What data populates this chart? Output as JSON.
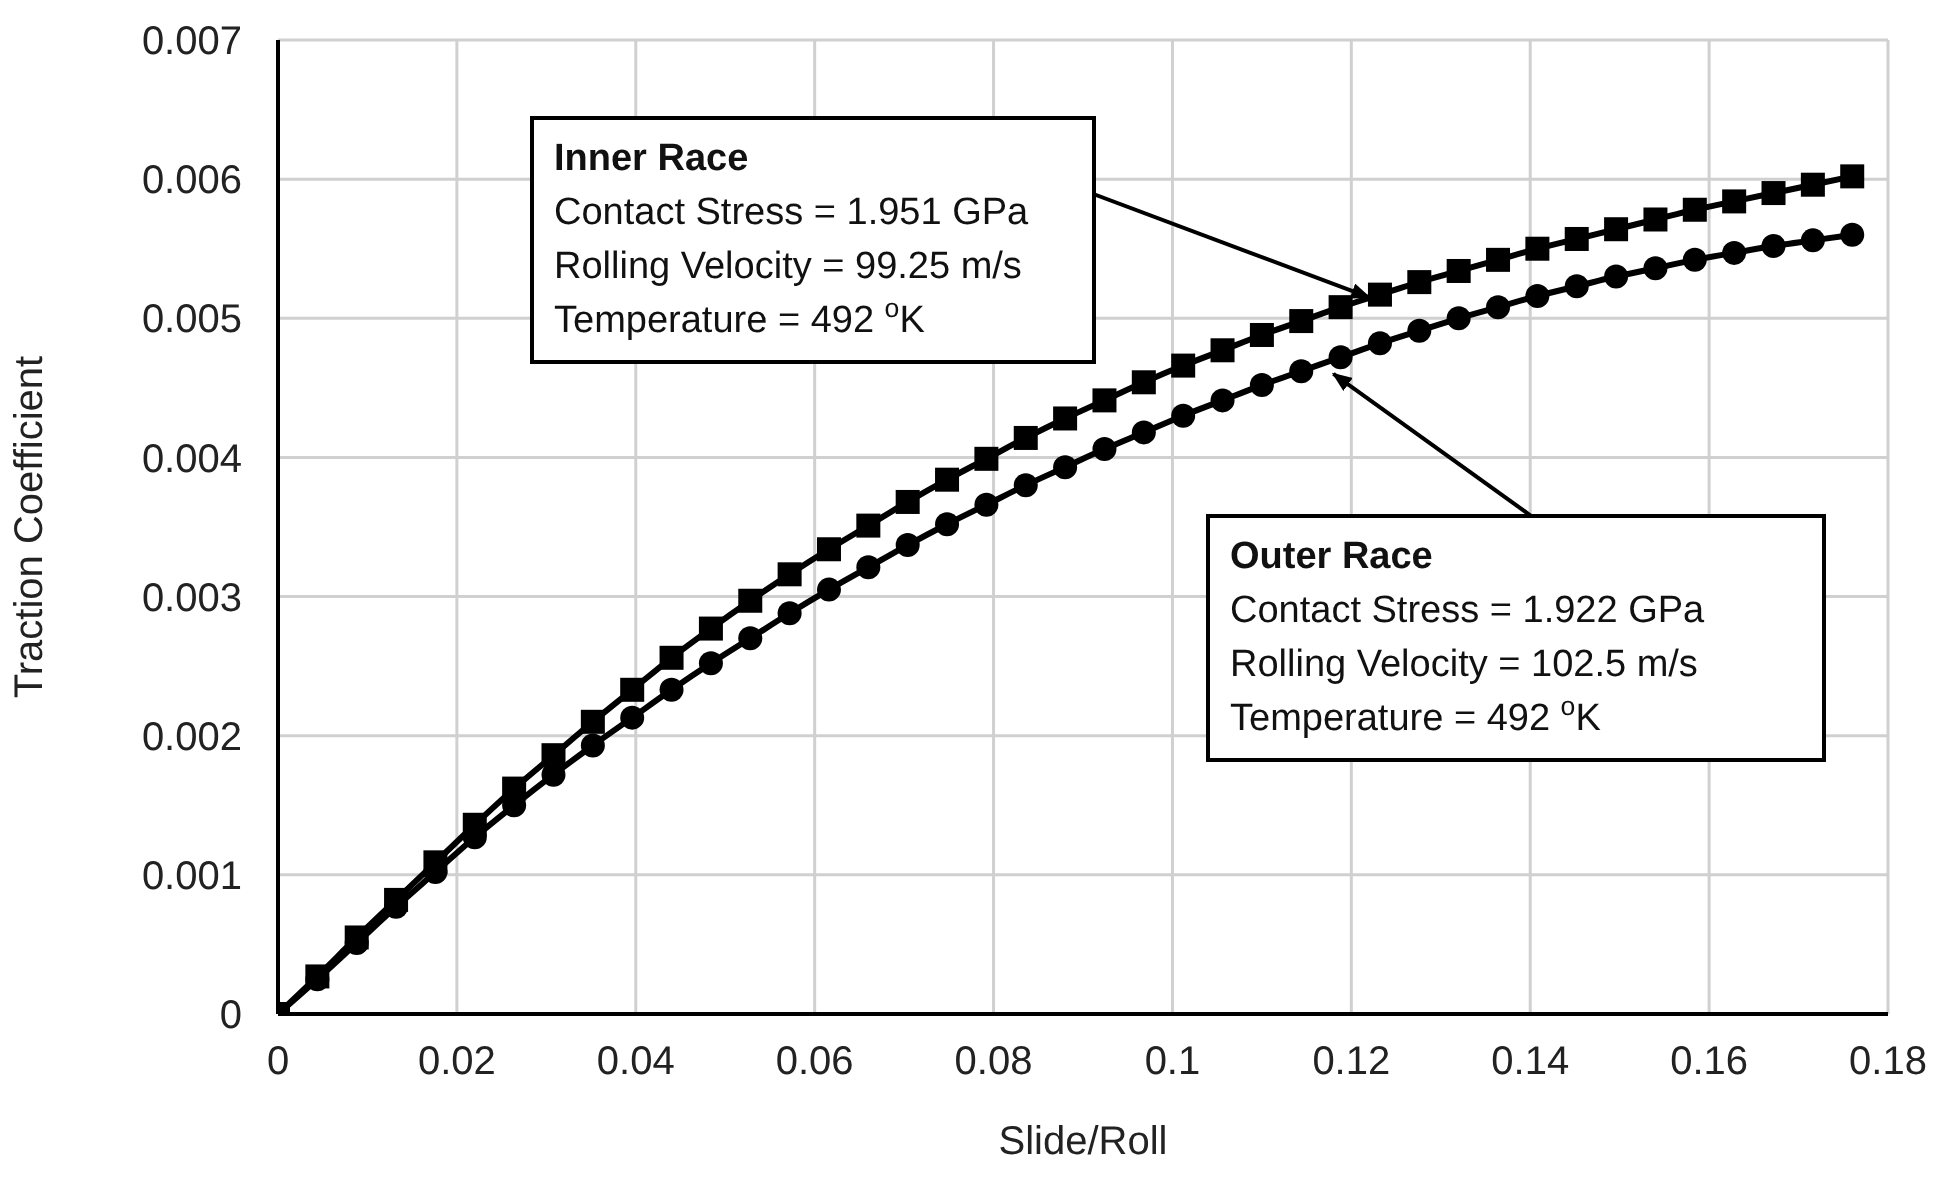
{
  "chart_data": {
    "type": "line",
    "xlabel": "Slide/Roll",
    "ylabel": "Traction Coefficient",
    "x": [
      0,
      0.0044,
      0.0088,
      0.0132,
      0.0176,
      0.022,
      0.0264,
      0.0308,
      0.0352,
      0.0396,
      0.044,
      0.0484,
      0.0528,
      0.0572,
      0.0616,
      0.066,
      0.0704,
      0.0748,
      0.0792,
      0.0836,
      0.088,
      0.0924,
      0.0968,
      0.1012,
      0.1056,
      0.11,
      0.1144,
      0.1188,
      0.1232,
      0.1276,
      0.132,
      0.1364,
      0.1408,
      0.1452,
      0.1496,
      0.154,
      0.1584,
      0.1628,
      0.1672,
      0.1716,
      0.176
    ],
    "series": [
      {
        "color": "#000000",
        "marker": "square",
        "values": [
          0,
          0.00027,
          0.00055,
          0.00082,
          0.00109,
          0.00136,
          0.00162,
          0.00186,
          0.0021,
          0.00233,
          0.00256,
          0.00277,
          0.00297,
          0.00316,
          0.00334,
          0.00351,
          0.00368,
          0.00384,
          0.00399,
          0.00414,
          0.00428,
          0.00441,
          0.00454,
          0.00466,
          0.00477,
          0.00488,
          0.00498,
          0.00508,
          0.00517,
          0.00526,
          0.00534,
          0.00542,
          0.0055,
          0.00557,
          0.00564,
          0.00571,
          0.00578,
          0.00584,
          0.0059,
          0.00596,
          0.00602
        ]
      },
      {
        "color": "#000000",
        "marker": "circle",
        "values": [
          0,
          0.00025,
          0.00051,
          0.00077,
          0.00102,
          0.00127,
          0.0015,
          0.00172,
          0.00193,
          0.00213,
          0.00233,
          0.00252,
          0.0027,
          0.00288,
          0.00305,
          0.00321,
          0.00337,
          0.00352,
          0.00366,
          0.0038,
          0.00393,
          0.00406,
          0.00418,
          0.0043,
          0.00441,
          0.00452,
          0.00462,
          0.00472,
          0.00482,
          0.00491,
          0.005,
          0.00508,
          0.00516,
          0.00523,
          0.0053,
          0.00536,
          0.00542,
          0.00547,
          0.00552,
          0.00556,
          0.0056
        ]
      }
    ],
    "annotations": [
      {
        "text": "Inner Race\nContact Stress = 1.951 GPa\nRolling Velocity = 99.25 m/s\nTemperature = 492 $^{o}$K",
        "x": 0.122,
        "y": 0.00515
      },
      {
        "text": "Outer Race\nContact Stress = 1.922 GPa\nRolling Velocity = 102.5 m/s\nTemperature = 492 $^{o}$K",
        "x": 0.118,
        "y": 0.0046
      }
    ],
    "xlim": [
      0,
      0.18
    ],
    "xticks": [
      0,
      0.02,
      0.04,
      0.06,
      0.08,
      0.1,
      0.12,
      0.14,
      0.16,
      0.18
    ],
    "ylim": [
      0,
      0.007
    ],
    "yticks": [
      0,
      0.001,
      0.002,
      0.003,
      0.004,
      0.005,
      0.006,
      0.007
    ],
    "grid": true,
    "legend": false,
    "line_style": "solid"
  }
}
